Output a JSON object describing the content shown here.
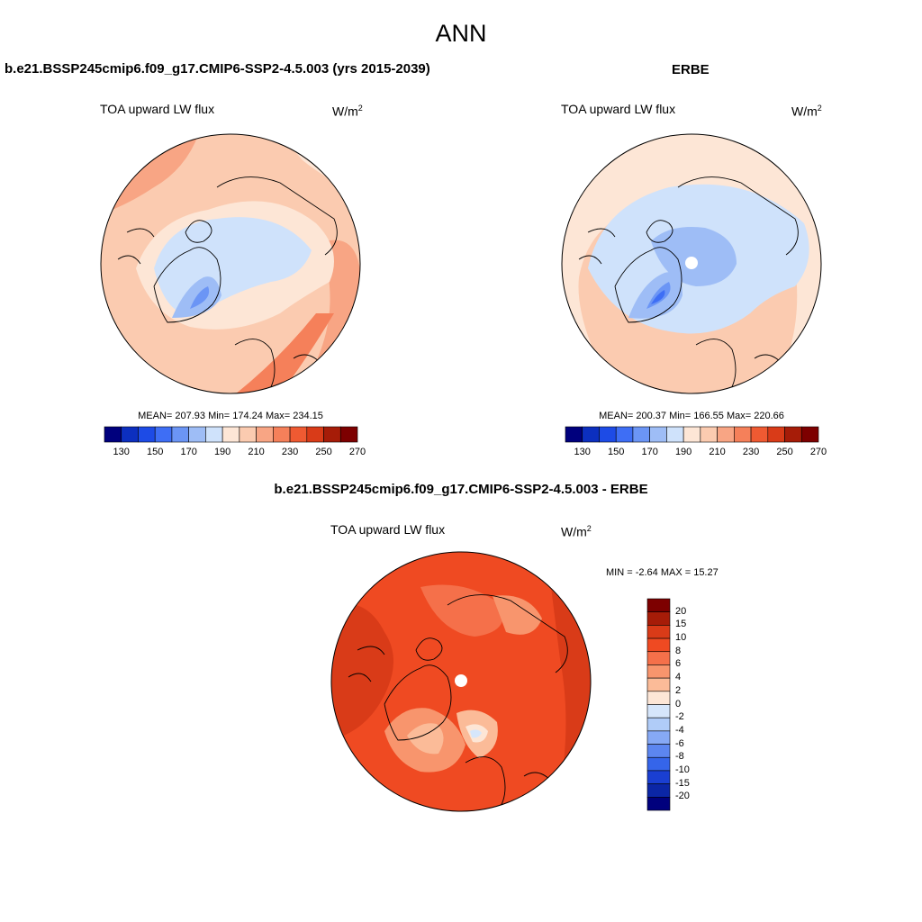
{
  "figure": {
    "season": "ANN"
  },
  "panels": [
    {
      "title": "b.e21.BSSP245cmip6.f09_g17.CMIP6-SSP2-4.5.003 (yrs 2015-2039)",
      "variable": "TOA upward LW flux",
      "units_base": "W/m",
      "units_exp": "2",
      "stats_text": "MEAN= 207.93  Min= 174.24  Max= 234.15",
      "stats": {
        "mean": 207.93,
        "min": 174.24,
        "max": 234.15
      },
      "colorbar_labels": [
        "130",
        "150",
        "170",
        "190",
        "210",
        "230",
        "250",
        "270"
      ]
    },
    {
      "title": "ERBE",
      "variable": "TOA upward LW flux",
      "units_base": "W/m",
      "units_exp": "2",
      "stats_text": "MEAN= 200.37  Min= 166.55  Max= 220.66",
      "stats": {
        "mean": 200.37,
        "min": 166.55,
        "max": 220.66
      },
      "colorbar_labels": [
        "130",
        "150",
        "170",
        "190",
        "210",
        "230",
        "250",
        "270"
      ]
    }
  ],
  "difference": {
    "title": "b.e21.BSSP245cmip6.f09_g17.CMIP6-SSP2-4.5.003 - ERBE",
    "variable": "TOA upward LW flux",
    "units_base": "W/m",
    "units_exp": "2",
    "minmax_text": "MIN =  -2.64 MAX =  15.27",
    "stats": {
      "min": -2.64,
      "max": 15.27
    },
    "colorbar_labels": [
      "20",
      "15",
      "10",
      "8",
      "6",
      "4",
      "2",
      "0",
      "-2",
      "-4",
      "-6",
      "-8",
      "-10",
      "-15",
      "-20"
    ]
  },
  "colors": {
    "abs_scale": [
      "#00007d",
      "#0c2fbf",
      "#1d4be6",
      "#3e6ef5",
      "#6b95f5",
      "#9ebdf6",
      "#cfe2fb",
      "#fde6d6",
      "#fbcbb0",
      "#f8a584",
      "#f5805a",
      "#ef5a32",
      "#d93b18",
      "#a61c08",
      "#7d0000"
    ],
    "diff_scale": [
      "#7d0000",
      "#a61c08",
      "#d93b18",
      "#ef4a22",
      "#f5704a",
      "#f8956d",
      "#fbbb98",
      "#fde6d6",
      "#d6e6fb",
      "#b0ccf8",
      "#86a9f5",
      "#5c86f0",
      "#3565ea",
      "#1a3fd2",
      "#0b26a6",
      "#00007d"
    ]
  }
}
